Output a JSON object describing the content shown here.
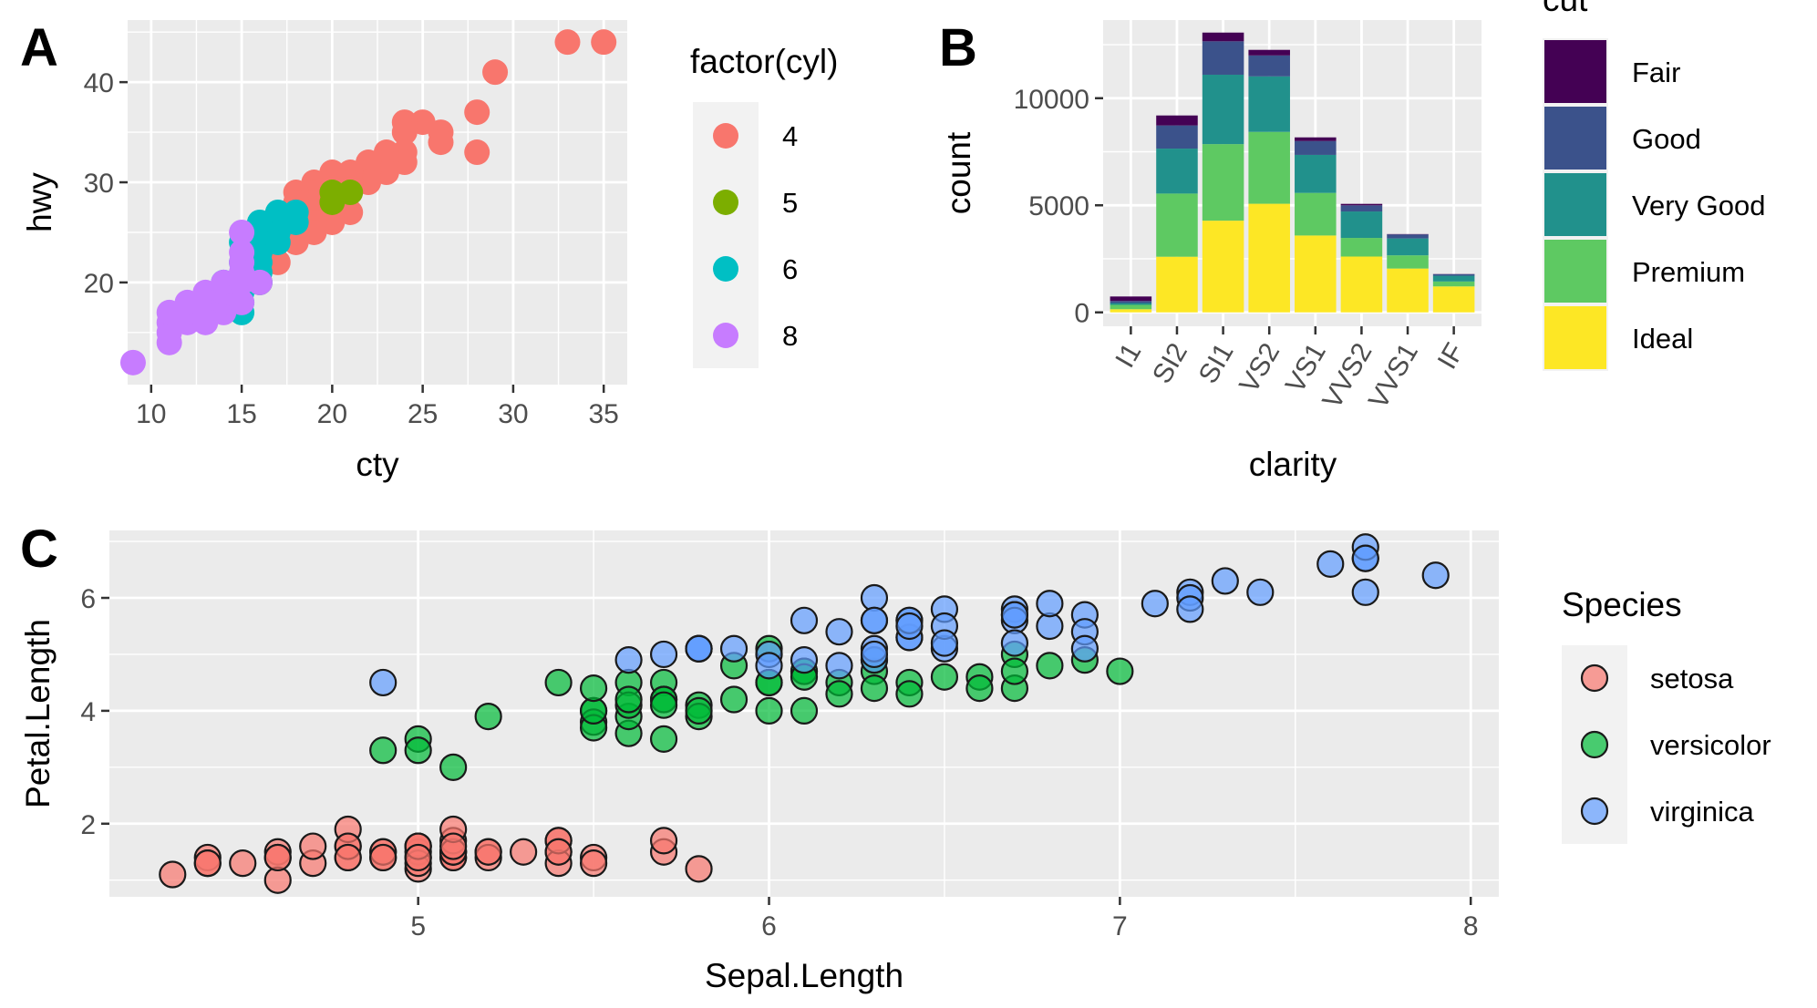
{
  "panels": {
    "A": {
      "tag": "A"
    },
    "B": {
      "tag": "B"
    },
    "C": {
      "tag": "C"
    }
  },
  "chart_data": [
    {
      "id": "A",
      "type": "scatter",
      "xlabel": "cty",
      "ylabel": "hwy",
      "xlim": [
        8.7,
        36.3
      ],
      "ylim": [
        9.8,
        46.2
      ],
      "xticks": [
        10,
        15,
        20,
        25,
        30,
        35
      ],
      "yticks": [
        20,
        30,
        40
      ],
      "grid": true,
      "legend": {
        "title": "factor(cyl)",
        "position": "right"
      },
      "series": [
        {
          "name": "4",
          "color": "#F8766D",
          "points": [
            [
              35,
              44
            ],
            [
              33,
              44
            ],
            [
              29,
              41
            ],
            [
              28,
              37
            ],
            [
              28,
              33
            ],
            [
              26,
              35
            ],
            [
              26,
              34
            ],
            [
              25,
              36
            ],
            [
              24,
              36
            ],
            [
              24,
              35
            ],
            [
              24,
              33
            ],
            [
              24,
              32
            ],
            [
              23,
              33
            ],
            [
              23,
              32
            ],
            [
              23,
              31
            ],
            [
              22,
              32
            ],
            [
              22,
              31
            ],
            [
              22,
              30
            ],
            [
              21,
              31
            ],
            [
              21,
              30
            ],
            [
              21,
              29
            ],
            [
              21,
              27
            ],
            [
              20,
              31
            ],
            [
              20,
              30
            ],
            [
              20,
              29
            ],
            [
              20,
              28
            ],
            [
              20,
              27
            ],
            [
              20,
              26
            ],
            [
              19,
              30
            ],
            [
              19,
              29
            ],
            [
              19,
              28
            ],
            [
              19,
              27
            ],
            [
              19,
              26
            ],
            [
              19,
              25
            ],
            [
              18,
              29
            ],
            [
              18,
              28
            ],
            [
              18,
              27
            ],
            [
              18,
              26
            ],
            [
              18,
              25
            ],
            [
              18,
              24
            ],
            [
              17,
              24
            ],
            [
              17,
              22
            ],
            [
              16,
              20
            ]
          ]
        },
        {
          "name": "5",
          "color": "#7CAE00",
          "points": [
            [
              20,
              29
            ],
            [
              20,
              28
            ],
            [
              21,
              29
            ]
          ]
        },
        {
          "name": "6",
          "color": "#00BFC4",
          "points": [
            [
              18,
              26
            ],
            [
              18,
              27
            ],
            [
              17,
              27
            ],
            [
              17,
              26
            ],
            [
              17,
              25
            ],
            [
              16,
              26
            ],
            [
              16,
              25
            ],
            [
              16,
              24
            ],
            [
              16,
              23
            ],
            [
              16,
              21
            ],
            [
              16,
              20
            ],
            [
              15,
              24
            ],
            [
              15,
              22
            ],
            [
              15,
              20
            ],
            [
              15,
              19
            ],
            [
              15,
              18
            ],
            [
              15,
              17
            ],
            [
              14,
              20
            ],
            [
              17,
              24
            ],
            [
              16,
              22
            ]
          ]
        },
        {
          "name": "8",
          "color": "#C77CFF",
          "points": [
            [
              9,
              12
            ],
            [
              11,
              14
            ],
            [
              11,
              15
            ],
            [
              11,
              16
            ],
            [
              11,
              17
            ],
            [
              12,
              16
            ],
            [
              12,
              17
            ],
            [
              12,
              18
            ],
            [
              13,
              16
            ],
            [
              13,
              17
            ],
            [
              13,
              19
            ],
            [
              14,
              17
            ],
            [
              14,
              18
            ],
            [
              14,
              19
            ],
            [
              14,
              20
            ],
            [
              15,
              25
            ],
            [
              15,
              23
            ],
            [
              15,
              22
            ],
            [
              15,
              21
            ],
            [
              15,
              20
            ],
            [
              15,
              18
            ],
            [
              16,
              20
            ]
          ]
        }
      ]
    },
    {
      "id": "B",
      "type": "bar",
      "stacked": true,
      "xlabel": "clarity",
      "ylabel": "count",
      "ylim": [
        -650,
        13650
      ],
      "yticks": [
        0,
        5000,
        10000
      ],
      "categories": [
        "I1",
        "SI2",
        "SI1",
        "VS2",
        "VS1",
        "VVS2",
        "VVS1",
        "IF"
      ],
      "grid": true,
      "legend": {
        "title": "cut",
        "position": "right"
      },
      "series": [
        {
          "name": "Ideal",
          "color": "#FDE725",
          "values": [
            146,
            2598,
            4282,
            5071,
            3589,
            2606,
            2047,
            1212
          ]
        },
        {
          "name": "Premium",
          "color": "#5EC962",
          "values": [
            205,
            2949,
            3575,
            3357,
            1989,
            870,
            616,
            230
          ]
        },
        {
          "name": "Very Good",
          "color": "#21918C",
          "values": [
            84,
            2100,
            3240,
            2591,
            1775,
            1235,
            789,
            268
          ]
        },
        {
          "name": "Good",
          "color": "#3B528B",
          "values": [
            96,
            1081,
            1560,
            978,
            648,
            286,
            186,
            71
          ]
        },
        {
          "name": "Fair",
          "color": "#440154",
          "values": [
            210,
            466,
            408,
            261,
            170,
            69,
            17,
            9
          ]
        }
      ]
    },
    {
      "id": "C",
      "type": "scatter",
      "xlabel": "Sepal.Length",
      "ylabel": "Petal.Length",
      "xlim": [
        4.12,
        8.08
      ],
      "ylim": [
        0.705,
        7.195
      ],
      "xticks": [
        5,
        6,
        7,
        8
      ],
      "yticks": [
        2,
        4,
        6
      ],
      "grid": true,
      "legend": {
        "title": "Species",
        "position": "right"
      },
      "series": [
        {
          "name": "setosa",
          "color": "#F8766D",
          "points": [
            [
              5.1,
              1.4
            ],
            [
              4.9,
              1.4
            ],
            [
              4.7,
              1.3
            ],
            [
              4.6,
              1.5
            ],
            [
              5.0,
              1.4
            ],
            [
              5.4,
              1.7
            ],
            [
              4.6,
              1.4
            ],
            [
              5.0,
              1.5
            ],
            [
              4.4,
              1.4
            ],
            [
              4.9,
              1.5
            ],
            [
              5.4,
              1.5
            ],
            [
              4.8,
              1.6
            ],
            [
              4.8,
              1.4
            ],
            [
              4.3,
              1.1
            ],
            [
              5.8,
              1.2
            ],
            [
              5.7,
              1.5
            ],
            [
              5.4,
              1.3
            ],
            [
              5.1,
              1.4
            ],
            [
              5.7,
              1.7
            ],
            [
              5.1,
              1.5
            ],
            [
              5.4,
              1.7
            ],
            [
              5.1,
              1.5
            ],
            [
              4.6,
              1.0
            ],
            [
              5.1,
              1.7
            ],
            [
              4.8,
              1.9
            ],
            [
              5.0,
              1.6
            ],
            [
              5.0,
              1.6
            ],
            [
              5.2,
              1.5
            ],
            [
              5.2,
              1.4
            ],
            [
              4.7,
              1.6
            ],
            [
              4.8,
              1.6
            ],
            [
              5.4,
              1.5
            ],
            [
              5.2,
              1.5
            ],
            [
              5.5,
              1.4
            ],
            [
              4.9,
              1.5
            ],
            [
              5.0,
              1.2
            ],
            [
              5.5,
              1.3
            ],
            [
              4.9,
              1.4
            ],
            [
              4.4,
              1.3
            ],
            [
              5.1,
              1.5
            ],
            [
              5.0,
              1.3
            ],
            [
              4.5,
              1.3
            ],
            [
              4.4,
              1.3
            ],
            [
              5.0,
              1.6
            ],
            [
              5.1,
              1.9
            ],
            [
              4.8,
              1.4
            ],
            [
              5.1,
              1.6
            ],
            [
              4.6,
              1.4
            ],
            [
              5.3,
              1.5
            ],
            [
              5.0,
              1.4
            ]
          ]
        },
        {
          "name": "versicolor",
          "color": "#00BA38",
          "points": [
            [
              7.0,
              4.7
            ],
            [
              6.4,
              4.5
            ],
            [
              6.9,
              4.9
            ],
            [
              5.5,
              4.0
            ],
            [
              6.5,
              4.6
            ],
            [
              5.7,
              4.5
            ],
            [
              6.3,
              4.7
            ],
            [
              4.9,
              3.3
            ],
            [
              6.6,
              4.6
            ],
            [
              5.2,
              3.9
            ],
            [
              5.0,
              3.5
            ],
            [
              5.9,
              4.2
            ],
            [
              6.0,
              4.0
            ],
            [
              6.1,
              4.7
            ],
            [
              5.6,
              3.6
            ],
            [
              6.7,
              4.4
            ],
            [
              5.6,
              4.5
            ],
            [
              5.8,
              4.1
            ],
            [
              6.2,
              4.5
            ],
            [
              5.6,
              3.9
            ],
            [
              5.9,
              4.8
            ],
            [
              6.1,
              4.0
            ],
            [
              6.3,
              4.9
            ],
            [
              6.1,
              4.7
            ],
            [
              6.4,
              4.3
            ],
            [
              6.6,
              4.4
            ],
            [
              6.8,
              4.8
            ],
            [
              6.7,
              5.0
            ],
            [
              6.0,
              4.5
            ],
            [
              5.7,
              3.5
            ],
            [
              5.5,
              3.8
            ],
            [
              5.5,
              3.7
            ],
            [
              5.8,
              3.9
            ],
            [
              6.0,
              5.1
            ],
            [
              5.4,
              4.5
            ],
            [
              6.0,
              4.5
            ],
            [
              6.7,
              4.7
            ],
            [
              6.3,
              4.4
            ],
            [
              5.6,
              4.1
            ],
            [
              5.5,
              4.0
            ],
            [
              5.5,
              4.4
            ],
            [
              6.1,
              4.6
            ],
            [
              5.8,
              4.0
            ],
            [
              5.0,
              3.3
            ],
            [
              5.6,
              4.2
            ],
            [
              5.7,
              4.2
            ],
            [
              5.7,
              4.2
            ],
            [
              6.2,
              4.3
            ],
            [
              5.1,
              3.0
            ],
            [
              5.7,
              4.1
            ]
          ]
        },
        {
          "name": "virginica",
          "color": "#619CFF",
          "points": [
            [
              6.3,
              6.0
            ],
            [
              5.8,
              5.1
            ],
            [
              7.1,
              5.9
            ],
            [
              6.3,
              5.6
            ],
            [
              6.5,
              5.8
            ],
            [
              7.6,
              6.6
            ],
            [
              4.9,
              4.5
            ],
            [
              7.3,
              6.3
            ],
            [
              6.7,
              5.8
            ],
            [
              7.2,
              6.1
            ],
            [
              6.5,
              5.1
            ],
            [
              6.4,
              5.3
            ],
            [
              6.8,
              5.5
            ],
            [
              5.7,
              5.0
            ],
            [
              5.8,
              5.1
            ],
            [
              6.4,
              5.3
            ],
            [
              6.5,
              5.5
            ],
            [
              7.7,
              6.7
            ],
            [
              7.7,
              6.9
            ],
            [
              6.0,
              5.0
            ],
            [
              6.9,
              5.7
            ],
            [
              5.6,
              4.9
            ],
            [
              7.7,
              6.7
            ],
            [
              6.3,
              4.9
            ],
            [
              6.7,
              5.7
            ],
            [
              7.2,
              6.0
            ],
            [
              6.2,
              4.8
            ],
            [
              6.1,
              4.9
            ],
            [
              6.4,
              5.6
            ],
            [
              7.2,
              5.8
            ],
            [
              7.4,
              6.1
            ],
            [
              7.9,
              6.4
            ],
            [
              6.4,
              5.6
            ],
            [
              6.3,
              5.1
            ],
            [
              6.1,
              5.6
            ],
            [
              7.7,
              6.1
            ],
            [
              6.3,
              5.6
            ],
            [
              6.4,
              5.5
            ],
            [
              6.0,
              4.8
            ],
            [
              6.9,
              5.4
            ],
            [
              6.7,
              5.6
            ],
            [
              6.9,
              5.1
            ],
            [
              5.8,
              5.1
            ],
            [
              6.8,
              5.9
            ],
            [
              6.7,
              5.7
            ],
            [
              6.7,
              5.2
            ],
            [
              6.3,
              5.0
            ],
            [
              6.5,
              5.2
            ],
            [
              6.2,
              5.4
            ],
            [
              5.9,
              5.1
            ]
          ]
        }
      ]
    }
  ]
}
